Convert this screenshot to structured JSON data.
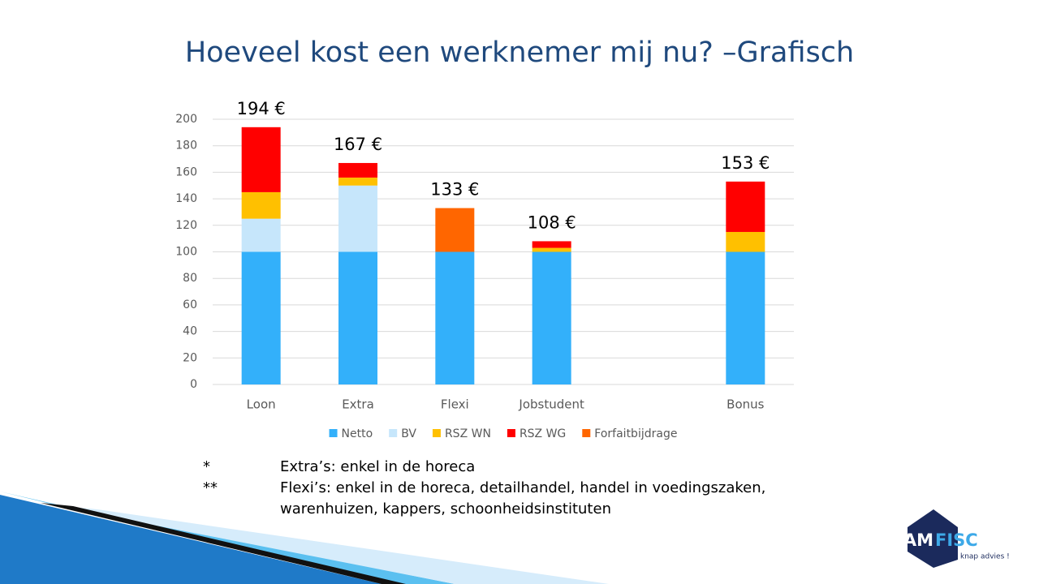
{
  "chart_data": {
    "type": "stacked-bar",
    "title": "Hoeveel kost een werknemer mij nu? –Grafisch",
    "categories": [
      "Loon",
      "Extra",
      "Flexi",
      "Jobstudent",
      null,
      "Bonus"
    ],
    "series": [
      {
        "name": "Netto",
        "color": "#33b0fa",
        "values": [
          100,
          100,
          100,
          100,
          null,
          100
        ]
      },
      {
        "name": "BV",
        "color": "#c6e6fb",
        "values": [
          25,
          50,
          null,
          null,
          null,
          null
        ]
      },
      {
        "name": "RSZ WN",
        "color": "#ffc000",
        "values": [
          20,
          6,
          null,
          3,
          null,
          15
        ]
      },
      {
        "name": "RSZ WG",
        "color": "#ff0000",
        "values": [
          49,
          11,
          null,
          5,
          null,
          38
        ]
      },
      {
        "name": "Forfaitbijdrage",
        "color": "#ff6600",
        "values": [
          null,
          null,
          33,
          null,
          null,
          null
        ]
      }
    ],
    "totals": [
      194,
      167,
      133,
      108,
      null,
      153
    ],
    "total_labels": [
      "194 €",
      "167 €",
      "133 €",
      "108 €",
      null,
      "153 €"
    ],
    "ylim": [
      0,
      200
    ],
    "yticks": [
      0,
      20,
      40,
      60,
      80,
      100,
      120,
      140,
      160,
      180,
      200
    ],
    "grid": true,
    "legend": "bottom"
  },
  "footnotes": [
    {
      "marker": "*",
      "text": "Extra’s: enkel in de horeca"
    },
    {
      "marker": "**",
      "text": "Flexi’s: enkel in de horeca, detailhandel, handel in voedingszaken, warenhuizen, kappers, schoonheidsinstituten"
    }
  ],
  "logo": {
    "part1": "CAM",
    "part2": "FISC",
    "tagline": "knap advies !"
  }
}
